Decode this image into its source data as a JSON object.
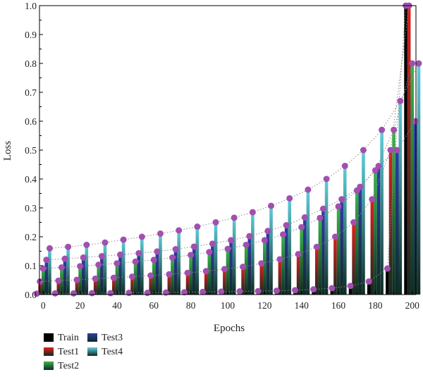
{
  "chart_data": {
    "type": "bar",
    "xlabel": "Epochs",
    "ylabel": "Loss",
    "xlim": [
      -2,
      202
    ],
    "ylim": [
      0,
      1.0
    ],
    "x_ticks": [
      0,
      20,
      40,
      60,
      80,
      100,
      120,
      140,
      160,
      180,
      200
    ],
    "y_ticks": [
      0.0,
      0.1,
      0.2,
      0.3,
      0.4,
      0.5,
      0.6,
      0.7,
      0.8,
      0.9,
      1.0
    ],
    "x_tick_labels": [
      "0",
      "20",
      "40",
      "60",
      "80",
      "100",
      "120",
      "140",
      "160",
      "180",
      "200"
    ],
    "y_tick_labels": [
      "0.0",
      "0.1",
      "0.2",
      "0.3",
      "0.4",
      "0.5",
      "0.6",
      "0.7",
      "0.8",
      "0.9",
      "1.0"
    ],
    "grid": false,
    "legend_position": "bottom-left, below plot",
    "x": [
      0,
      10,
      20,
      30,
      40,
      50,
      60,
      70,
      80,
      90,
      100,
      110,
      120,
      130,
      140,
      150,
      160,
      170,
      180,
      190,
      200
    ],
    "series": [
      {
        "name": "Train",
        "color": "#000000",
        "values": [
          0.003,
          0.004,
          0.004,
          0.005,
          0.005,
          0.006,
          0.006,
          0.007,
          0.008,
          0.009,
          0.01,
          0.011,
          0.012,
          0.013,
          0.015,
          0.018,
          0.022,
          0.03,
          0.045,
          0.09,
          1.0
        ]
      },
      {
        "name": "Test1",
        "color": "#e0201c",
        "values": [
          0.045,
          0.048,
          0.051,
          0.055,
          0.058,
          0.062,
          0.066,
          0.07,
          0.075,
          0.081,
          0.088,
          0.096,
          0.108,
          0.122,
          0.14,
          0.165,
          0.2,
          0.25,
          0.33,
          0.5,
          1.0
        ]
      },
      {
        "name": "Test2",
        "color": "#3cb54a",
        "values": [
          0.09,
          0.094,
          0.098,
          0.103,
          0.108,
          0.114,
          0.12,
          0.128,
          0.137,
          0.147,
          0.158,
          0.172,
          0.188,
          0.208,
          0.233,
          0.265,
          0.305,
          0.36,
          0.43,
          0.57,
          0.8
        ]
      },
      {
        "name": "Test3",
        "color": "#2b3ea8",
        "values": [
          0.12,
          0.124,
          0.128,
          0.133,
          0.138,
          0.143,
          0.149,
          0.157,
          0.166,
          0.176,
          0.188,
          0.202,
          0.22,
          0.24,
          0.267,
          0.297,
          0.33,
          0.373,
          0.445,
          0.5,
          0.6
        ]
      },
      {
        "name": "Test4",
        "color": "#5fcfdc",
        "values": [
          0.16,
          0.165,
          0.172,
          0.18,
          0.19,
          0.2,
          0.211,
          0.222,
          0.235,
          0.25,
          0.266,
          0.285,
          0.307,
          0.333,
          0.363,
          0.4,
          0.445,
          0.5,
          0.57,
          0.67,
          0.8
        ]
      }
    ],
    "marker_color": "#a24fb0"
  }
}
